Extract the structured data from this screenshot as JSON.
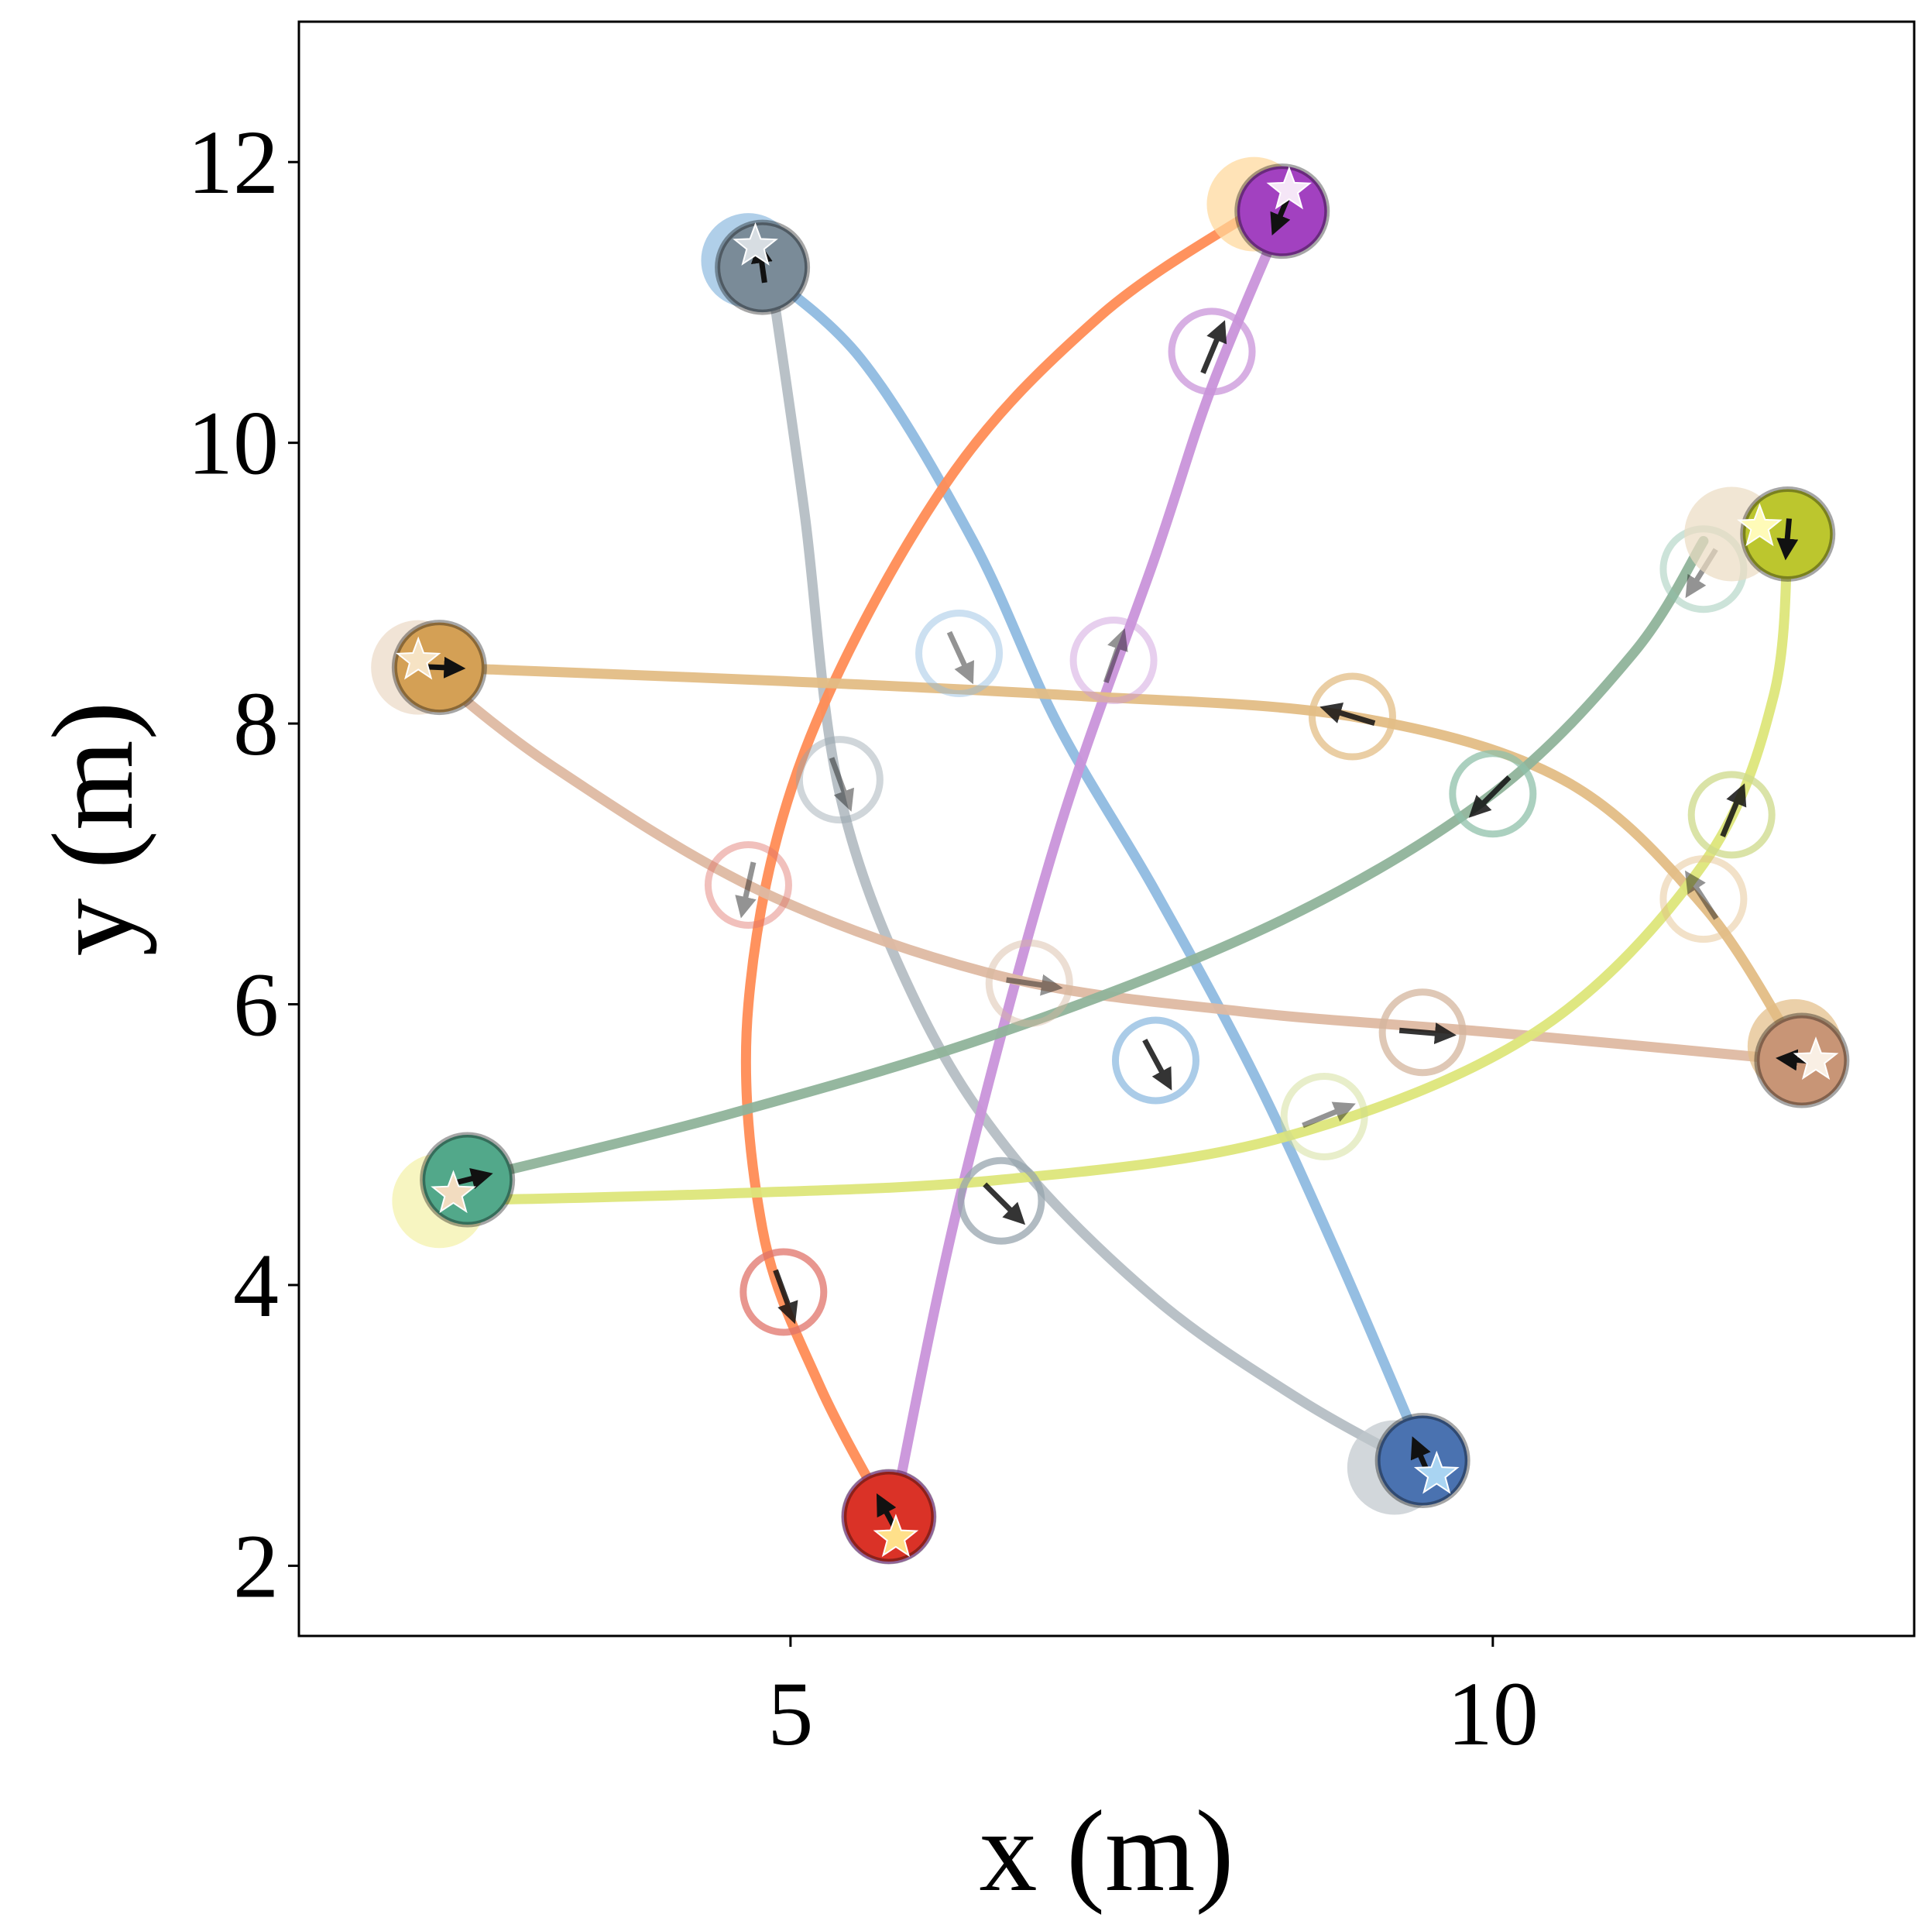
{
  "chart_data": {
    "type": "line",
    "title": "",
    "xlabel": "x (m)",
    "ylabel": "y (m)",
    "xlim": [
      1.5,
      13.0
    ],
    "ylim": [
      1.5,
      13.0
    ],
    "xticks": [
      5,
      10
    ],
    "yticks": [
      2,
      4,
      6,
      8,
      10,
      12
    ],
    "grid": false,
    "legend": "none",
    "series": [
      {
        "color": "#8fbbe0",
        "start_color": "#8fbbe0",
        "end_color": "#4a72b0",
        "ghost_color": "#8fbbe0",
        "path": [
          [
            4.7,
            11.3
          ],
          [
            5.5,
            10.6
          ],
          [
            6.3,
            9.3
          ],
          [
            6.9,
            8.0
          ],
          [
            7.6,
            6.8
          ],
          [
            8.3,
            5.5
          ],
          [
            8.9,
            4.2
          ],
          [
            9.5,
            2.8
          ]
        ],
        "start": [
          4.7,
          11.3
        ],
        "end": [
          9.5,
          2.75
        ],
        "goal": [
          9.6,
          2.65
        ],
        "ghosts": [
          [
            6.2,
            8.5
          ],
          [
            7.6,
            5.6
          ]
        ]
      },
      {
        "color": "#b5bec4",
        "start_color": "#c0c7cc",
        "end_color": "#7a8b98",
        "ghost_color": "#97a4ad",
        "path": [
          [
            4.85,
            11.25
          ],
          [
            5.1,
            9.5
          ],
          [
            5.35,
            7.5
          ],
          [
            5.9,
            6.0
          ],
          [
            6.6,
            4.9
          ],
          [
            7.6,
            3.9
          ],
          [
            8.6,
            3.2
          ],
          [
            9.4,
            2.75
          ]
        ],
        "start": [
          9.3,
          2.7
        ],
        "end": [
          4.8,
          11.25
        ],
        "goal": [
          4.75,
          11.4
        ],
        "ghosts": [
          [
            5.35,
            7.6
          ],
          [
            6.5,
            4.6
          ]
        ]
      },
      {
        "color": "#ff8c55",
        "start_color": "#ffd89a",
        "end_color": "#da3227",
        "ghost_color": "#e0736a",
        "path": [
          [
            8.3,
            11.65
          ],
          [
            7.2,
            10.9
          ],
          [
            6.1,
            9.7
          ],
          [
            5.1,
            7.8
          ],
          [
            4.7,
            6.0
          ],
          [
            4.8,
            4.4
          ],
          [
            5.2,
            3.3
          ],
          [
            5.7,
            2.35
          ]
        ],
        "start": [
          8.3,
          11.7
        ],
        "end": [
          5.7,
          2.35
        ],
        "goal": [
          5.75,
          2.2
        ],
        "ghosts": [
          [
            4.7,
            6.85
          ],
          [
            4.95,
            3.95
          ]
        ]
      },
      {
        "color": "#c994da",
        "start_color": "#d06fe0",
        "end_color": "#a241c0",
        "ghost_color": "#c994da",
        "path": [
          [
            5.75,
            2.45
          ],
          [
            6.2,
            4.6
          ],
          [
            6.9,
            7.2
          ],
          [
            7.6,
            9.2
          ],
          [
            8.0,
            10.4
          ],
          [
            8.5,
            11.6
          ]
        ],
        "start": [
          5.7,
          2.35
        ],
        "end": [
          8.5,
          11.65
        ],
        "goal": [
          8.55,
          11.8
        ],
        "ghosts": [
          [
            7.3,
            8.45
          ],
          [
            8.0,
            10.65
          ]
        ]
      },
      {
        "color": "#e3bd85",
        "start_color": "#e3bd85",
        "end_color": "#d4a055",
        "ghost_color": "#e3bd85",
        "path": [
          [
            12.15,
            5.7
          ],
          [
            11.5,
            6.7
          ],
          [
            10.5,
            7.6
          ],
          [
            9.0,
            8.05
          ],
          [
            7.0,
            8.2
          ],
          [
            5.0,
            8.3
          ],
          [
            3.0,
            8.38
          ],
          [
            2.5,
            8.4
          ]
        ],
        "start": [
          12.15,
          5.7
        ],
        "end": [
          2.5,
          8.4
        ],
        "goal": [
          2.35,
          8.45
        ],
        "ghosts": [
          [
            11.5,
            6.75
          ],
          [
            9.0,
            8.05
          ]
        ]
      },
      {
        "color": "#deb9a2",
        "start_color": "#ecd9c6",
        "end_color": "#c89576",
        "ghost_color": "#d4b59e",
        "path": [
          [
            2.4,
            8.4
          ],
          [
            3.3,
            7.7
          ],
          [
            4.8,
            6.8
          ],
          [
            6.5,
            6.2
          ],
          [
            8.2,
            5.95
          ],
          [
            10.0,
            5.8
          ],
          [
            12.15,
            5.6
          ]
        ],
        "start": [
          2.35,
          8.4
        ],
        "end": [
          12.2,
          5.6
        ],
        "goal": [
          12.3,
          5.6
        ],
        "ghosts": [
          [
            6.7,
            6.15
          ],
          [
            9.5,
            5.8
          ]
        ]
      },
      {
        "color": "#8fb39a",
        "start_color": "#ecdcc3",
        "end_color": "#52a88a",
        "ghost_color": "#8fc0aa",
        "path": [
          [
            11.5,
            9.3
          ],
          [
            11.0,
            8.5
          ],
          [
            10.0,
            7.5
          ],
          [
            8.5,
            6.6
          ],
          [
            6.5,
            5.8
          ],
          [
            4.5,
            5.2
          ],
          [
            2.7,
            4.75
          ]
        ],
        "start": [
          11.7,
          9.35
        ],
        "end": [
          2.7,
          4.75
        ],
        "goal": [
          2.6,
          4.65
        ],
        "ghosts": [
          [
            11.5,
            9.1
          ],
          [
            10.0,
            7.5
          ]
        ]
      },
      {
        "color": "#dde67a",
        "start_color": "#f5f2a8",
        "end_color": "#bcc62e",
        "ghost_color": "#cdd98a",
        "path": [
          [
            2.5,
            4.6
          ],
          [
            4.5,
            4.65
          ],
          [
            6.5,
            4.75
          ],
          [
            8.5,
            5.05
          ],
          [
            10.3,
            5.8
          ],
          [
            11.5,
            7.0
          ],
          [
            12.0,
            8.2
          ],
          [
            12.1,
            9.35
          ]
        ],
        "start": [
          2.5,
          4.6
        ],
        "end": [
          12.1,
          9.35
        ],
        "goal": [
          11.9,
          9.4
        ],
        "ghosts": [
          [
            8.8,
            5.2
          ],
          [
            11.7,
            7.35
          ]
        ]
      }
    ]
  }
}
